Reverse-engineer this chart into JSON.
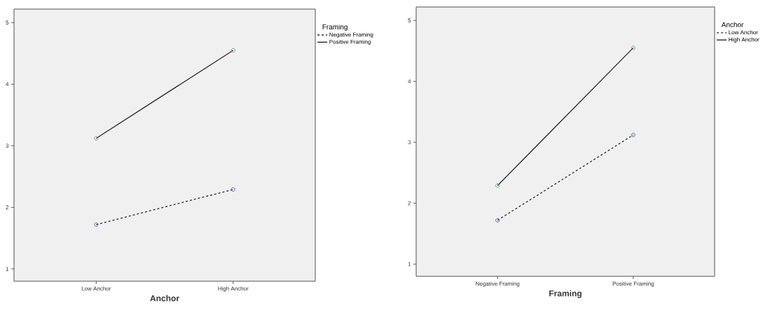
{
  "chart_data": [
    {
      "type": "line",
      "categories": [
        "Low Anchor",
        "High Anchor"
      ],
      "xlabel": "Anchor",
      "legend_title": "Framing",
      "legend": "top right",
      "marker": "circle",
      "ylim": [
        0.8,
        5.22
      ],
      "yticks": [
        1,
        2,
        3,
        4,
        5
      ],
      "series": [
        {
          "name": "Negative Framing",
          "color": "#262626",
          "colors": [
            "#4a5aa8",
            "#4a5aa8"
          ],
          "line_style": "dashed",
          "values": [
            1.72,
            2.29
          ]
        },
        {
          "name": "Positive Framing",
          "color": "#262626",
          "colors": [
            "#4caf50",
            "#4caf50"
          ],
          "line_style": "solid",
          "values": [
            3.12,
            4.55
          ]
        }
      ]
    },
    {
      "type": "line",
      "categories": [
        "Negative Framing",
        "Positive Framing"
      ],
      "xlabel": "Framing",
      "legend_title": "Anchor",
      "legend": "top right",
      "marker": "circle",
      "ylim": [
        0.8,
        5.22
      ],
      "yticks": [
        1,
        2,
        3,
        4,
        5
      ],
      "series": [
        {
          "name": "Low Anchor",
          "color": "#262626",
          "colors": [
            "#4a5aa8",
            "#4a5aa8"
          ],
          "line_style": "dashed",
          "values": [
            1.72,
            3.12
          ]
        },
        {
          "name": "High Anchor",
          "color": "#262626",
          "colors": [
            "#4caf50",
            "#4caf50"
          ],
          "line_style": "solid",
          "values": [
            2.29,
            4.55
          ]
        }
      ]
    }
  ]
}
